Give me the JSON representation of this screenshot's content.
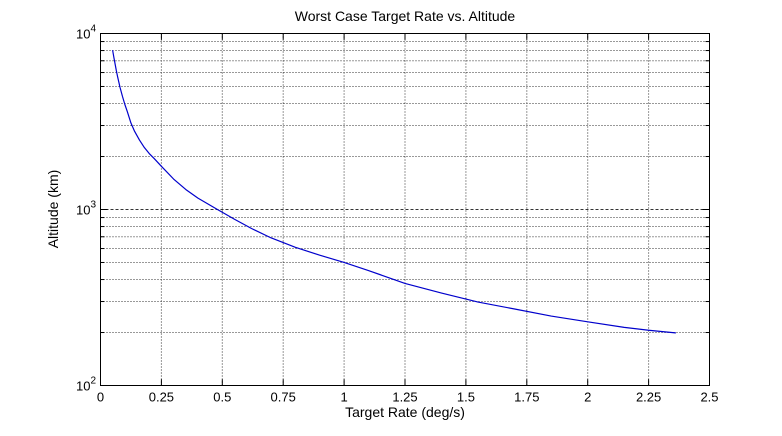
{
  "figure": {
    "background": "#ffffff"
  },
  "chart_data": {
    "type": "line",
    "title": "Worst Case Target Rate vs. Altitude",
    "xlabel": "Target Rate (deg/s)",
    "ylabel": "Altitude (km)",
    "xlim": [
      0,
      2.5
    ],
    "ylim": [
      100,
      10000
    ],
    "yscale": "log",
    "grid": true,
    "xticks": [
      0,
      0.25,
      0.5,
      0.75,
      1,
      1.25,
      1.5,
      1.75,
      2,
      2.25,
      2.5
    ],
    "xtick_labels": [
      "0",
      "0.25",
      "0.5",
      "0.75",
      "1",
      "1.25",
      "1.5",
      "1.75",
      "2",
      "2.25",
      "2.5"
    ],
    "ytick_exponents": [
      2,
      3,
      4
    ],
    "ytick_base": "10",
    "line_color": "#0000CC",
    "axis_color": "#000000",
    "grid_color": "#333333",
    "series": [
      {
        "name": "worst-case-target-rate",
        "points": [
          [
            0.05,
            8000
          ],
          [
            0.055,
            7300
          ],
          [
            0.06,
            6700
          ],
          [
            0.065,
            6150
          ],
          [
            0.07,
            5700
          ],
          [
            0.08,
            4950
          ],
          [
            0.09,
            4400
          ],
          [
            0.1,
            3950
          ],
          [
            0.11,
            3600
          ],
          [
            0.125,
            3100
          ],
          [
            0.14,
            2780
          ],
          [
            0.16,
            2480
          ],
          [
            0.18,
            2250
          ],
          [
            0.2,
            2080
          ],
          [
            0.22,
            1950
          ],
          [
            0.25,
            1760
          ],
          [
            0.3,
            1490
          ],
          [
            0.35,
            1300
          ],
          [
            0.4,
            1160
          ],
          [
            0.48,
            1000
          ],
          [
            0.55,
            880
          ],
          [
            0.62,
            780
          ],
          [
            0.7,
            690
          ],
          [
            0.8,
            610
          ],
          [
            0.9,
            550
          ],
          [
            1.0,
            500
          ],
          [
            1.1,
            450
          ],
          [
            1.25,
            380
          ],
          [
            1.4,
            335
          ],
          [
            1.55,
            298
          ],
          [
            1.7,
            272
          ],
          [
            1.85,
            248
          ],
          [
            2.0,
            230
          ],
          [
            2.15,
            214
          ],
          [
            2.25,
            206
          ],
          [
            2.36,
            199
          ]
        ]
      }
    ]
  }
}
